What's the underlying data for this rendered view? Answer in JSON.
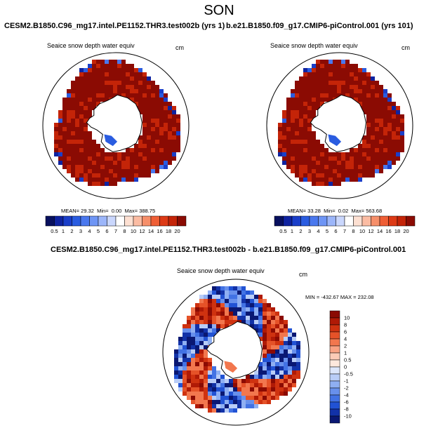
{
  "figure": {
    "title": "SON",
    "panel_left": {
      "case": "CESM2.B1850.C96_mg17.intel.PE1152.THR3.test002b (yrs 1)",
      "variable": "Seaice snow depth water equiv",
      "units": "cm",
      "stats": {
        "mean_label": "MEAN=",
        "mean": "29.32",
        "min_label": "Min=",
        "min": "0.00",
        "max_label": "Max=",
        "max": "388.75"
      }
    },
    "panel_right": {
      "case": "b.e21.B1850.f09_g17.CMIP6-piControl.001 (yrs 101)",
      "variable": "Seaice snow depth water equiv",
      "units": "cm",
      "stats": {
        "mean_label": "MEAN=",
        "mean": "33.28",
        "min_label": "Min=",
        "min": "0.02",
        "max_label": "Max=",
        "max": "563.68"
      }
    },
    "panel_diff": {
      "case": "CESM2.B1850.C96_mg17.intel.PE1152.THR3.test002b - b.e21.B1850.f09_g17.CMIP6-piControl.001",
      "variable": "Seaice snow depth water equiv",
      "units": "cm",
      "minmax": "MIN = -432.67  MAX = 232.08"
    }
  },
  "chart_data": [
    {
      "type": "heatmap",
      "projection": "south-polar-stereographic",
      "title": "CESM2.B1850.C96_mg17.intel.PE1152.THR3.test002b (yrs 1)",
      "variable": "Seaice snow depth water equiv",
      "units": "cm",
      "stats": {
        "mean": 29.32,
        "min": 0.0,
        "max": 388.75
      },
      "colorbar": {
        "orientation": "horizontal",
        "levels": [
          "0.5",
          "1",
          "2",
          "3",
          "4",
          "5",
          "6",
          "7",
          "8",
          "10",
          "12",
          "14",
          "16",
          "18",
          "20"
        ],
        "colors": [
          "#08105e",
          "#0f23a0",
          "#1a3ec9",
          "#2a5ce0",
          "#4a78ee",
          "#6e95f5",
          "#9cb6fa",
          "#cad7fd",
          "#ffffff",
          "#fde0d2",
          "#fbbca3",
          "#f68f6a",
          "#ef5f36",
          "#dd3a16",
          "#c42408",
          "#8b0b03"
        ]
      }
    },
    {
      "type": "heatmap",
      "projection": "south-polar-stereographic",
      "title": "b.e21.B1850.f09_g17.CMIP6-piControl.001 (yrs 101)",
      "variable": "Seaice snow depth water equiv",
      "units": "cm",
      "stats": {
        "mean": 33.28,
        "min": 0.02,
        "max": 563.68
      },
      "colorbar": {
        "orientation": "horizontal",
        "levels": [
          "0.5",
          "1",
          "2",
          "3",
          "4",
          "5",
          "6",
          "7",
          "8",
          "10",
          "12",
          "14",
          "16",
          "18",
          "20"
        ],
        "colors": [
          "#08105e",
          "#0f23a0",
          "#1a3ec9",
          "#2a5ce0",
          "#4a78ee",
          "#6e95f5",
          "#9cb6fa",
          "#cad7fd",
          "#ffffff",
          "#fde0d2",
          "#fbbca3",
          "#f68f6a",
          "#ef5f36",
          "#dd3a16",
          "#c42408",
          "#8b0b03"
        ]
      }
    },
    {
      "type": "heatmap",
      "projection": "south-polar-stereographic",
      "title": "CESM2.B1850.C96_mg17.intel.PE1152.THR3.test002b - b.e21.B1850.f09_g17.CMIP6-piControl.001",
      "variable": "Seaice snow depth water equiv",
      "units": "cm",
      "stats": {
        "min": -432.67,
        "max": 232.08
      },
      "colorbar": {
        "orientation": "vertical",
        "levels": [
          "10",
          "8",
          "6",
          "4",
          "2",
          "1",
          "0.5",
          "0",
          "-0.5",
          "-1",
          "-2",
          "-4",
          "-6",
          "-8",
          "-10"
        ],
        "colors": [
          "#8b0b03",
          "#b01a06",
          "#cf3210",
          "#e55228",
          "#f2774e",
          "#f9a283",
          "#fccbb7",
          "#fde8dd",
          "#dce6fb",
          "#b9cdf7",
          "#8faff2",
          "#6890ec",
          "#4272e4",
          "#2152d4",
          "#1232a8",
          "#0a1873"
        ]
      }
    }
  ]
}
